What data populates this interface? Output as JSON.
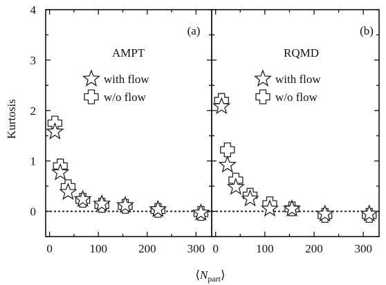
{
  "chart_data": [
    {
      "type": "scatter",
      "panel_label": "(a)",
      "model": "AMPT",
      "ylabel": "Kurtosis",
      "xlabel": "⟨N_part⟩",
      "xlim": [
        -8,
        332
      ],
      "ylim": [
        -0.5,
        4
      ],
      "yticks": [
        "0",
        "1",
        "2",
        "3",
        "4"
      ],
      "xticks": [
        "0",
        "100",
        "200",
        "300"
      ],
      "reference_line": 0,
      "legend": [
        {
          "name": "with flow",
          "marker": "star"
        },
        {
          "name": "w/o flow",
          "marker": "cross"
        }
      ],
      "series": [
        {
          "name": "with flow",
          "marker": "star",
          "x": [
            11,
            22,
            38,
            68,
            107,
            155,
            222,
            310
          ],
          "y": [
            1.58,
            0.77,
            0.38,
            0.24,
            0.15,
            0.12,
            0.04,
            -0.03
          ]
        },
        {
          "name": "w/o flow",
          "marker": "cross",
          "x": [
            11,
            22,
            38,
            68,
            107,
            155,
            222,
            310
          ],
          "y": [
            1.75,
            0.9,
            0.49,
            0.22,
            0.12,
            0.1,
            0.02,
            -0.04
          ]
        }
      ]
    },
    {
      "type": "scatter",
      "panel_label": "(b)",
      "model": "RQMD",
      "xlim": [
        -8,
        332
      ],
      "ylim": [
        -0.5,
        4
      ],
      "xticks": [
        "0",
        "100",
        "200",
        "300"
      ],
      "reference_line": 0,
      "legend": [
        {
          "name": "with flow",
          "marker": "star"
        },
        {
          "name": "w/o flow",
          "marker": "cross"
        }
      ],
      "series": [
        {
          "name": "with flow",
          "marker": "star",
          "x": [
            12,
            24,
            41,
            70,
            110,
            155,
            222,
            312
          ],
          "y": [
            2.08,
            0.92,
            0.48,
            0.25,
            0.05,
            0.05,
            -0.05,
            -0.05
          ]
        },
        {
          "name": "w/o flow",
          "marker": "cross",
          "x": [
            12,
            24,
            41,
            70,
            110,
            155,
            222,
            312
          ],
          "y": [
            2.2,
            1.22,
            0.62,
            0.32,
            0.15,
            0.05,
            -0.08,
            -0.08
          ]
        }
      ]
    }
  ]
}
